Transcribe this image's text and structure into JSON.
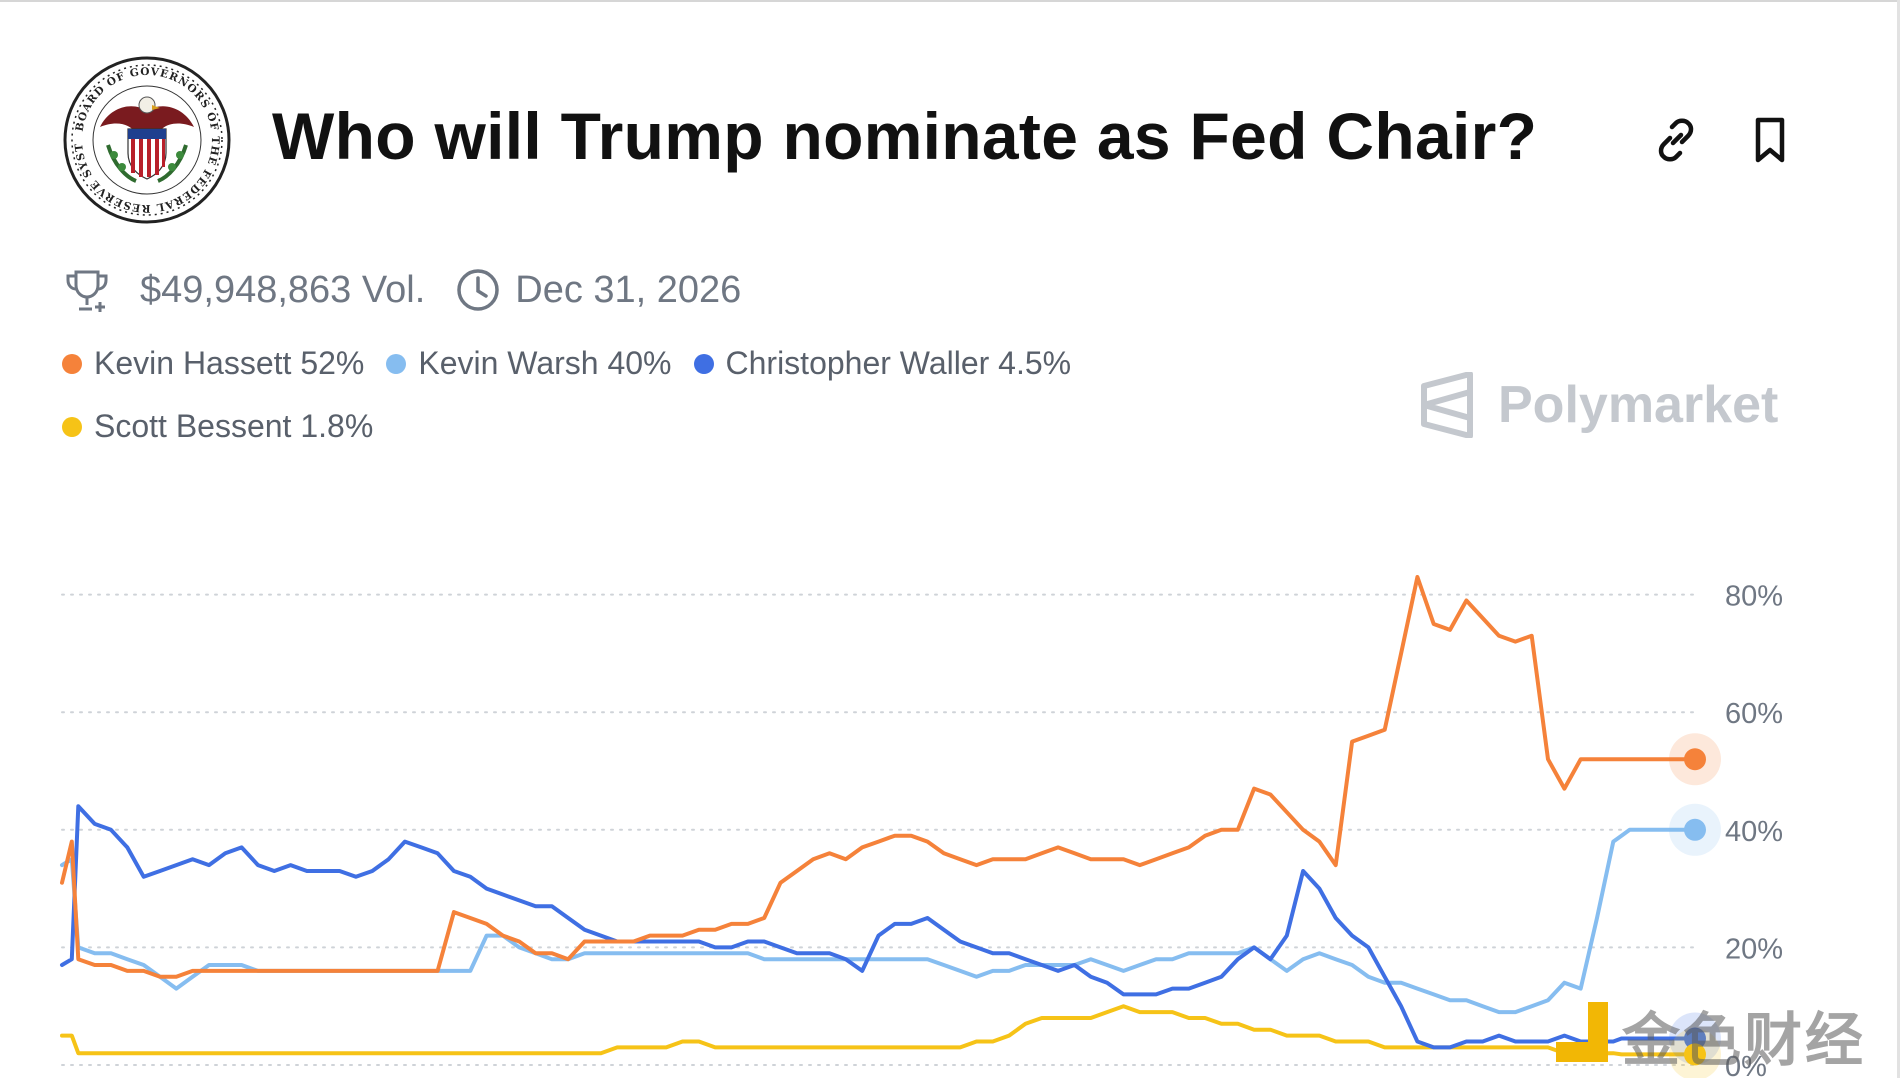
{
  "header": {
    "title": "Who will Trump nominate as Fed Chair?",
    "seal_text": "BOARD OF GOVERNORS OF THE FEDERAL RESERVE SYSTEM",
    "link_icon": "link-icon",
    "bookmark_icon": "bookmark-icon"
  },
  "meta": {
    "volume": "$49,948,863 Vol.",
    "end_date": "Dec 31, 2026",
    "trophy_icon": "trophy-icon",
    "clock_icon": "clock-icon"
  },
  "legend": [
    {
      "label": "Kevin Hassett 52%",
      "color": "#f5823a"
    },
    {
      "label": "Kevin Warsh 40%",
      "color": "#86bdf0"
    },
    {
      "label": "Christopher Waller 4.5%",
      "color": "#3f6fe3"
    },
    {
      "label": "Scott Bessent 1.8%",
      "color": "#f6c317"
    }
  ],
  "brand": "Polymarket",
  "watermark": "金色财经",
  "chart_data": {
    "type": "line",
    "title": "Who will Trump nominate as Fed Chair?",
    "ylim": [
      0,
      85
    ],
    "y_ticks": [
      0,
      20,
      40,
      60,
      80
    ],
    "y_tick_labels": [
      "0%",
      "20%",
      "40%",
      "60%",
      "80%"
    ],
    "x": [
      0,
      0.6,
      1,
      2,
      3,
      4,
      5,
      6,
      7,
      8,
      9,
      10,
      11,
      12,
      13,
      14,
      15,
      16,
      17,
      18,
      19,
      20,
      21,
      22,
      23,
      24,
      25,
      26,
      27,
      28,
      29,
      30,
      31,
      32,
      33,
      34,
      35,
      36,
      37,
      38,
      39,
      40,
      41,
      42,
      43,
      44,
      45,
      46,
      47,
      48,
      49,
      50,
      51,
      52,
      53,
      54,
      55,
      56,
      57,
      58,
      59,
      60,
      61,
      62,
      63,
      64,
      65,
      66,
      67,
      68,
      69,
      70,
      71,
      72,
      73,
      74,
      75,
      76,
      77,
      78,
      79,
      80,
      81,
      82,
      83,
      84,
      85,
      86,
      87,
      88,
      89,
      90,
      91,
      92,
      93,
      94,
      95,
      95.5,
      96,
      97,
      98,
      99,
      100
    ],
    "series": [
      {
        "name": "Kevin Hassett",
        "color": "#f5823a",
        "current": 52,
        "values": [
          31,
          38,
          18,
          17,
          17,
          16,
          16,
          15,
          15,
          16,
          16,
          16,
          16,
          16,
          16,
          16,
          16,
          16,
          16,
          16,
          16,
          16,
          16,
          16,
          16,
          26,
          25,
          24,
          22,
          21,
          19,
          19,
          18,
          21,
          21,
          21,
          21,
          22,
          22,
          22,
          23,
          23,
          24,
          24,
          25,
          31,
          33,
          35,
          36,
          35,
          37,
          38,
          39,
          39,
          38,
          36,
          35,
          34,
          35,
          35,
          35,
          36,
          37,
          36,
          35,
          35,
          35,
          34,
          35,
          36,
          37,
          39,
          40,
          40,
          47,
          46,
          43,
          40,
          38,
          34,
          55,
          56,
          57,
          70,
          83,
          75,
          74,
          79,
          76,
          73,
          72,
          73,
          52,
          47,
          52,
          52,
          52,
          52,
          52,
          52,
          52,
          52,
          52
        ]
      },
      {
        "name": "Kevin Warsh",
        "color": "#86bdf0",
        "current": 40,
        "values": [
          34,
          35,
          20,
          19,
          19,
          18,
          17,
          15,
          13,
          15,
          17,
          17,
          17,
          16,
          16,
          16,
          16,
          16,
          16,
          16,
          16,
          16,
          16,
          16,
          16,
          16,
          16,
          22,
          22,
          20,
          19,
          18,
          18,
          19,
          19,
          19,
          19,
          19,
          19,
          19,
          19,
          19,
          19,
          19,
          18,
          18,
          18,
          18,
          18,
          18,
          18,
          18,
          18,
          18,
          18,
          17,
          16,
          15,
          16,
          16,
          17,
          17,
          17,
          17,
          18,
          17,
          16,
          17,
          18,
          18,
          19,
          19,
          19,
          19,
          20,
          18,
          16,
          18,
          19,
          18,
          17,
          15,
          14,
          14,
          13,
          12,
          11,
          11,
          10,
          9,
          9,
          10,
          11,
          14,
          13,
          25,
          38,
          39,
          40,
          40,
          40,
          40,
          40
        ]
      },
      {
        "name": "Christopher Waller",
        "color": "#3f6fe3",
        "current": 4.5,
        "values": [
          17,
          18,
          44,
          41,
          40,
          37,
          32,
          33,
          34,
          35,
          34,
          36,
          37,
          34,
          33,
          34,
          33,
          33,
          33,
          32,
          33,
          35,
          38,
          37,
          36,
          33,
          32,
          30,
          29,
          28,
          27,
          27,
          25,
          23,
          22,
          21,
          21,
          21,
          21,
          21,
          21,
          20,
          20,
          21,
          21,
          20,
          19,
          19,
          19,
          18,
          16,
          22,
          24,
          24,
          25,
          23,
          21,
          20,
          19,
          19,
          18,
          17,
          16,
          17,
          15,
          14,
          12,
          12,
          12,
          13,
          13,
          14,
          15,
          18,
          20,
          18,
          22,
          33,
          30,
          25,
          22,
          20,
          15,
          10,
          4,
          3,
          3,
          4,
          4,
          5,
          4,
          4,
          4,
          5,
          4,
          4,
          4,
          4.5,
          4.5,
          4.5,
          4.5,
          4.5,
          4.5
        ]
      },
      {
        "name": "Scott Bessent",
        "color": "#f6c317",
        "current": 1.8,
        "values": [
          5,
          5,
          2,
          2,
          2,
          2,
          2,
          2,
          2,
          2,
          2,
          2,
          2,
          2,
          2,
          2,
          2,
          2,
          2,
          2,
          2,
          2,
          2,
          2,
          2,
          2,
          2,
          2,
          2,
          2,
          2,
          2,
          2,
          2,
          2,
          3,
          3,
          3,
          3,
          4,
          4,
          3,
          3,
          3,
          3,
          3,
          3,
          3,
          3,
          3,
          3,
          3,
          3,
          3,
          3,
          3,
          3,
          4,
          4,
          5,
          7,
          8,
          8,
          8,
          8,
          9,
          10,
          9,
          9,
          9,
          8,
          8,
          7,
          7,
          6,
          6,
          5,
          5,
          5,
          4,
          4,
          4,
          3,
          3,
          3,
          3,
          3,
          3,
          3,
          3,
          3,
          3,
          3,
          2,
          2,
          2,
          2,
          1.8,
          1.8,
          1.8,
          1.8,
          1.8,
          1.8
        ]
      }
    ]
  }
}
